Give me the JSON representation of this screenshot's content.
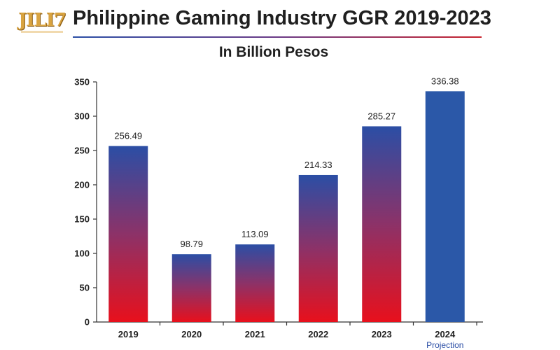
{
  "brand": {
    "logo_text": "JILI7"
  },
  "header": {
    "title": "Philippine Gaming Industry GGR 2019-2023",
    "subtitle": "In Billion Pesos"
  },
  "colors": {
    "bar_top": "#2b4ea5",
    "bar_mid": "#8c3268",
    "bar_bottom": "#e8101c",
    "projection_bar": "#2b58a8",
    "axis": "#333333",
    "projection_note": "#2b4ea5"
  },
  "chart_data": {
    "type": "bar",
    "title": "Philippine Gaming Industry GGR 2019-2023",
    "subtitle": "In Billion Pesos",
    "xlabel": "",
    "ylabel": "",
    "categories": [
      "2019",
      "2020",
      "2021",
      "2022",
      "2023",
      "2024"
    ],
    "values": [
      256.49,
      98.79,
      113.09,
      214.33,
      285.27,
      336.38
    ],
    "value_labels": [
      "256.49",
      "98.79",
      "113.09",
      "214.33",
      "285.27",
      "336.38"
    ],
    "category_notes": [
      "",
      "",
      "",
      "",
      "",
      "Projection"
    ],
    "projection_index": 5,
    "ylim": [
      0,
      350
    ],
    "yticks": [
      0,
      50,
      100,
      150,
      200,
      250,
      300,
      350
    ],
    "grid": false,
    "legend": "none"
  }
}
